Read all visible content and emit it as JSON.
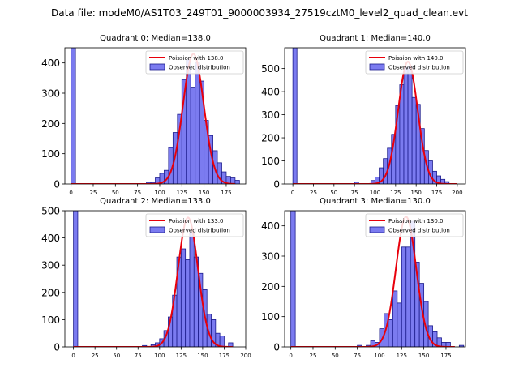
{
  "suptitle": "Data file: modeM0/AS1T03_249T01_9000003934_27519cztM0_level2_quad_clean.evt",
  "colors": {
    "bar_fill": "#7b7bf0",
    "bar_edge": "#1c1c8c",
    "fit_line": "#e8000b",
    "legend_patch": "#7b7bf0"
  },
  "chart_data": [
    {
      "type": "bar",
      "title": "Quadrant 0: Median=138.0",
      "legend": [
        "Poission with 138.0",
        "Observed distribution"
      ],
      "legend_position": "upper-right",
      "xlim": [
        -7,
        197
      ],
      "ylim": [
        0,
        450
      ],
      "xticks": [
        0,
        25,
        50,
        75,
        100,
        125,
        150,
        175
      ],
      "yticks": [
        0,
        100,
        200,
        300,
        400
      ],
      "bin_width": 5,
      "bin_start": [
        0,
        85,
        90,
        95,
        100,
        105,
        110,
        115,
        120,
        125,
        130,
        135,
        140,
        145,
        150,
        155,
        160,
        165,
        170,
        175,
        180,
        185
      ],
      "counts": [
        1500,
        5,
        5,
        20,
        35,
        45,
        120,
        170,
        230,
        345,
        410,
        320,
        400,
        340,
        210,
        160,
        110,
        70,
        40,
        25,
        20,
        12
      ],
      "poisson_mean": 138.0,
      "poisson_peak": 430,
      "poisson_range": [
        0,
        185
      ]
    },
    {
      "type": "bar",
      "title": "Quadrant 1: Median=140.0",
      "legend": [
        "Poission with 140.0",
        "Observed distribution"
      ],
      "legend_position": "upper-right",
      "xlim": [
        -10,
        210
      ],
      "ylim": [
        0,
        590
      ],
      "xticks": [
        0,
        25,
        50,
        75,
        100,
        125,
        150,
        175,
        200
      ],
      "yticks": [
        0,
        100,
        200,
        300,
        400,
        500
      ],
      "bin_width": 5,
      "bin_start": [
        0,
        75,
        95,
        100,
        105,
        110,
        115,
        120,
        125,
        130,
        135,
        140,
        145,
        150,
        155,
        160,
        165,
        170,
        175,
        180,
        185
      ],
      "counts": [
        1600,
        8,
        15,
        30,
        70,
        110,
        155,
        215,
        340,
        430,
        505,
        510,
        375,
        345,
        240,
        145,
        100,
        55,
        35,
        20,
        10
      ],
      "poisson_mean": 140.0,
      "poisson_peak": 530,
      "poisson_range": [
        0,
        200
      ]
    },
    {
      "type": "bar",
      "title": "Quadrant 2: Median=133.0",
      "legend": [
        "Poission with 133.0",
        "Observed distribution"
      ],
      "legend_position": "upper-right",
      "xlim": [
        -10,
        200
      ],
      "ylim": [
        0,
        500
      ],
      "xticks": [
        0,
        25,
        50,
        75,
        100,
        125,
        150,
        175,
        200
      ],
      "yticks": [
        0,
        100,
        200,
        300,
        400,
        500
      ],
      "bin_width": 5,
      "bin_start": [
        0,
        80,
        90,
        95,
        100,
        105,
        110,
        115,
        120,
        125,
        130,
        135,
        140,
        145,
        150,
        155,
        160,
        165,
        170,
        180
      ],
      "counts": [
        1500,
        5,
        8,
        15,
        30,
        60,
        110,
        190,
        330,
        360,
        320,
        420,
        330,
        270,
        210,
        120,
        100,
        50,
        40,
        15
      ],
      "poisson_mean": 133.0,
      "poisson_peak": 475,
      "poisson_range": [
        0,
        185
      ]
    },
    {
      "type": "bar",
      "title": "Quadrant 3: Median=130.0",
      "legend": [
        "Poission with 130.0",
        "Observed distribution"
      ],
      "legend_position": "upper-right",
      "xlim": [
        -7,
        197
      ],
      "ylim": [
        0,
        450
      ],
      "xticks": [
        0,
        25,
        50,
        75,
        100,
        125,
        150,
        175
      ],
      "yticks": [
        0,
        100,
        200,
        300,
        400
      ],
      "bin_width": 5,
      "bin_start": [
        0,
        75,
        85,
        90,
        95,
        100,
        105,
        110,
        115,
        120,
        125,
        130,
        135,
        140,
        145,
        150,
        155,
        160,
        165,
        170,
        175,
        190
      ],
      "counts": [
        1500,
        5,
        5,
        20,
        15,
        60,
        110,
        90,
        185,
        145,
        330,
        330,
        415,
        280,
        210,
        150,
        70,
        50,
        30,
        15,
        15,
        5
      ],
      "poisson_mean": 130.0,
      "poisson_peak": 430,
      "poisson_range": [
        0,
        185
      ]
    }
  ]
}
